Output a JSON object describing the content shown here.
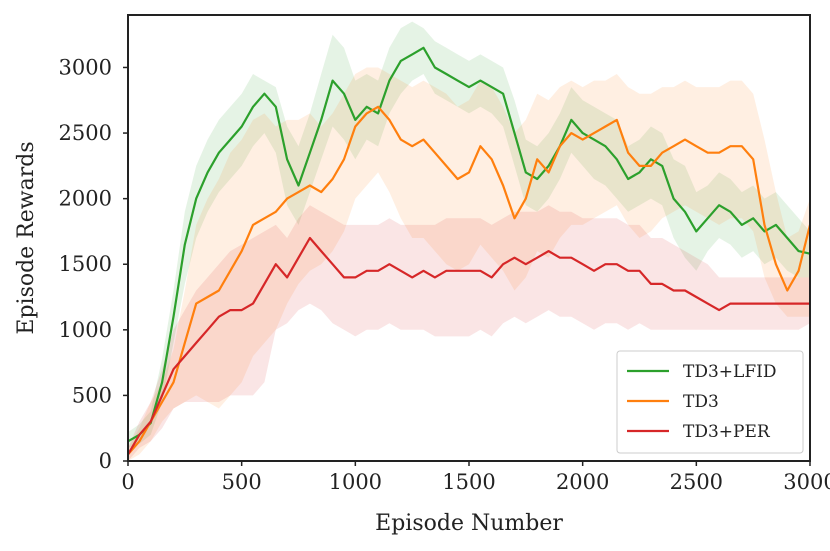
{
  "chart_data": {
    "type": "line",
    "title": "",
    "xlabel": "Episode Number",
    "ylabel": "Episode Rewards",
    "xlim": [
      0,
      3000
    ],
    "ylim": [
      0,
      3400
    ],
    "xticks": [
      0,
      500,
      1000,
      1500,
      2000,
      2500,
      3000
    ],
    "yticks": [
      0,
      500,
      1000,
      1500,
      2000,
      2500,
      3000
    ],
    "xtick_labels": [
      "0",
      "500",
      "1000",
      "1500",
      "2000",
      "2500",
      "3000"
    ],
    "ytick_labels": [
      "0",
      "500",
      "1000",
      "1500",
      "2000",
      "2500",
      "3000"
    ],
    "grid": false,
    "legend_position": "lower-right",
    "series": [
      {
        "name": "TD3+LFID",
        "color": "#2ca02c",
        "x": [
          0,
          50,
          100,
          150,
          200,
          250,
          300,
          350,
          400,
          450,
          500,
          550,
          600,
          650,
          700,
          750,
          800,
          850,
          900,
          950,
          1000,
          1050,
          1100,
          1150,
          1200,
          1250,
          1300,
          1350,
          1400,
          1450,
          1500,
          1550,
          1600,
          1650,
          1700,
          1750,
          1800,
          1850,
          1900,
          1950,
          2000,
          2050,
          2100,
          2150,
          2200,
          2250,
          2300,
          2350,
          2400,
          2450,
          2500,
          2550,
          2600,
          2650,
          2700,
          2750,
          2800,
          2850,
          2900,
          2950,
          3000
        ],
        "y": [
          150,
          200,
          290,
          600,
          1100,
          1650,
          2000,
          2200,
          2350,
          2450,
          2550,
          2700,
          2800,
          2700,
          2300,
          2100,
          2350,
          2600,
          2900,
          2800,
          2600,
          2700,
          2650,
          2900,
          3050,
          3100,
          3150,
          3000,
          2950,
          2900,
          2850,
          2900,
          2850,
          2800,
          2500,
          2200,
          2150,
          2250,
          2400,
          2600,
          2500,
          2450,
          2400,
          2300,
          2150,
          2200,
          2300,
          2250,
          2000,
          1900,
          1750,
          1850,
          1950,
          1900,
          1800,
          1850,
          1750,
          1800,
          1700,
          1600,
          1580
        ],
        "band_lo": [
          100,
          130,
          200,
          450,
          900,
          1350,
          1700,
          1900,
          2050,
          2150,
          2250,
          2400,
          2500,
          2350,
          1950,
          1800,
          2050,
          2300,
          2550,
          2450,
          2300,
          2450,
          2400,
          2650,
          2800,
          2900,
          2950,
          2800,
          2750,
          2700,
          2650,
          2700,
          2650,
          2550,
          2250,
          1950,
          1900,
          2000,
          2150,
          2350,
          2250,
          2150,
          2100,
          2000,
          1900,
          1950,
          2000,
          1950,
          1700,
          1550,
          1450,
          1600,
          1700,
          1650,
          1550,
          1600,
          1500,
          1550,
          1450,
          1400,
          1400
        ],
        "band_hi": [
          220,
          280,
          380,
          780,
          1300,
          1900,
          2250,
          2450,
          2600,
          2700,
          2800,
          2950,
          2900,
          2850,
          2550,
          2400,
          2650,
          2950,
          3250,
          3150,
          2900,
          2950,
          2900,
          3150,
          3300,
          3350,
          3300,
          3200,
          3150,
          3100,
          3050,
          3100,
          3050,
          3000,
          2750,
          2450,
          2400,
          2500,
          2650,
          2850,
          2750,
          2700,
          2650,
          2600,
          2400,
          2450,
          2550,
          2500,
          2300,
          2250,
          2050,
          2100,
          2200,
          2150,
          2050,
          2100,
          2000,
          2050,
          1950,
          1850,
          1750
        ]
      },
      {
        "name": "TD3",
        "color": "#ff7f0e",
        "x": [
          0,
          50,
          100,
          150,
          200,
          250,
          300,
          350,
          400,
          450,
          500,
          550,
          600,
          650,
          700,
          750,
          800,
          850,
          900,
          950,
          1000,
          1050,
          1100,
          1150,
          1200,
          1250,
          1300,
          1350,
          1400,
          1450,
          1500,
          1550,
          1600,
          1650,
          1700,
          1750,
          1800,
          1850,
          1900,
          1950,
          2000,
          2050,
          2100,
          2150,
          2200,
          2250,
          2300,
          2350,
          2400,
          2450,
          2500,
          2550,
          2600,
          2650,
          2700,
          2750,
          2800,
          2850,
          2900,
          2950,
          3000
        ],
        "y": [
          50,
          150,
          300,
          450,
          600,
          900,
          1200,
          1250,
          1300,
          1450,
          1600,
          1800,
          1850,
          1900,
          2000,
          2050,
          2100,
          2050,
          2150,
          2300,
          2550,
          2650,
          2700,
          2600,
          2450,
          2400,
          2450,
          2350,
          2250,
          2150,
          2200,
          2400,
          2300,
          2100,
          1850,
          2000,
          2300,
          2200,
          2400,
          2500,
          2450,
          2500,
          2550,
          2600,
          2350,
          2250,
          2250,
          2350,
          2400,
          2450,
          2400,
          2350,
          2350,
          2400,
          2400,
          2300,
          1800,
          1500,
          1300,
          1450,
          1800
        ],
        "band_lo": [
          0,
          50,
          150,
          300,
          400,
          450,
          500,
          450,
          400,
          500,
          600,
          800,
          900,
          1000,
          1200,
          1350,
          1450,
          1500,
          1600,
          1750,
          2000,
          2100,
          2200,
          2050,
          1850,
          1700,
          1700,
          1600,
          1500,
          1450,
          1500,
          1650,
          1550,
          1450,
          1300,
          1400,
          1600,
          1550,
          1700,
          1800,
          1800,
          1850,
          1900,
          1950,
          1800,
          1700,
          1750,
          1850,
          1900,
          1950,
          1900,
          1850,
          1800,
          1850,
          1850,
          1750,
          1400,
          1200,
          1100,
          1100,
          1100
        ],
        "band_hi": [
          100,
          250,
          450,
          600,
          850,
          1300,
          1800,
          2000,
          2150,
          2350,
          2450,
          2600,
          2650,
          2550,
          2600,
          2600,
          2650,
          2550,
          2650,
          2800,
          2950,
          3000,
          3000,
          2950,
          2900,
          2850,
          2900,
          2850,
          2800,
          2700,
          2750,
          2900,
          2850,
          2700,
          2500,
          2600,
          2800,
          2750,
          2850,
          2900,
          2850,
          2900,
          2900,
          2950,
          2850,
          2800,
          2800,
          2850,
          2850,
          2900,
          2850,
          2850,
          2850,
          2900,
          2900,
          2800,
          2450,
          2050,
          1700,
          1750,
          2000
        ]
      },
      {
        "name": "TD3+PER",
        "color": "#d62728",
        "x": [
          0,
          50,
          100,
          150,
          200,
          250,
          300,
          350,
          400,
          450,
          500,
          550,
          600,
          650,
          700,
          750,
          800,
          850,
          900,
          950,
          1000,
          1050,
          1100,
          1150,
          1200,
          1250,
          1300,
          1350,
          1400,
          1450,
          1500,
          1550,
          1600,
          1650,
          1700,
          1750,
          1800,
          1850,
          1900,
          1950,
          2000,
          2050,
          2100,
          2150,
          2200,
          2250,
          2300,
          2350,
          2400,
          2450,
          2500,
          2550,
          2600,
          2650,
          2700,
          2750,
          2800,
          2850,
          2900,
          2950,
          3000
        ],
        "y": [
          50,
          200,
          300,
          500,
          700,
          800,
          900,
          1000,
          1100,
          1150,
          1150,
          1200,
          1350,
          1500,
          1400,
          1550,
          1700,
          1600,
          1500,
          1400,
          1400,
          1450,
          1450,
          1500,
          1450,
          1400,
          1450,
          1400,
          1450,
          1450,
          1450,
          1450,
          1400,
          1500,
          1550,
          1500,
          1550,
          1600,
          1550,
          1550,
          1500,
          1450,
          1500,
          1500,
          1450,
          1450,
          1350,
          1350,
          1300,
          1300,
          1250,
          1200,
          1150,
          1200,
          1200,
          1200,
          1200,
          1200,
          1200,
          1200,
          1200
        ],
        "band_lo": [
          0,
          100,
          150,
          250,
          400,
          450,
          450,
          450,
          450,
          500,
          500,
          500,
          600,
          1000,
          1050,
          1150,
          1200,
          1150,
          1050,
          1000,
          950,
          1000,
          1000,
          1050,
          1000,
          1000,
          1000,
          950,
          950,
          950,
          950,
          1000,
          950,
          1050,
          1100,
          1050,
          1100,
          1150,
          1100,
          1100,
          1050,
          1000,
          1050,
          1050,
          1000,
          1050,
          1000,
          1000,
          1000,
          1000,
          1000,
          1000,
          1000,
          1000,
          1000,
          1000,
          1000,
          1000,
          1000,
          1000,
          1050
        ],
        "band_hi": [
          100,
          300,
          450,
          700,
          1000,
          1150,
          1300,
          1400,
          1500,
          1600,
          1650,
          1700,
          1750,
          1800,
          1700,
          1850,
          1950,
          1900,
          1850,
          1800,
          1800,
          1800,
          1800,
          1850,
          1800,
          1800,
          1800,
          1800,
          1850,
          1850,
          1850,
          1850,
          1800,
          1850,
          1900,
          1900,
          1900,
          1950,
          1900,
          1900,
          1850,
          1850,
          1850,
          1850,
          1800,
          1800,
          1700,
          1700,
          1650,
          1600,
          1550,
          1500,
          1400,
          1400,
          1400,
          1400,
          1400,
          1400,
          1400,
          1400,
          1400
        ]
      }
    ]
  }
}
